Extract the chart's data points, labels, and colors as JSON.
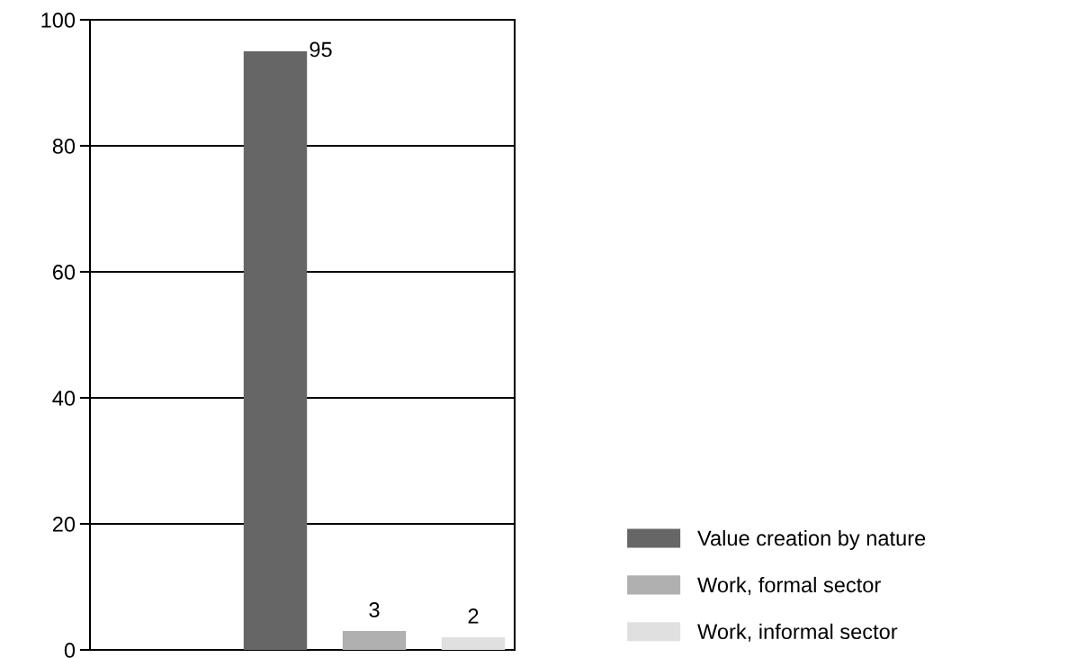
{
  "chart_data": {
    "type": "bar",
    "categories": [
      null
    ],
    "series": [
      {
        "name": "Value creation by nature",
        "color": "#666666",
        "values": [
          95
        ]
      },
      {
        "name": "Work, formal sector",
        "color": "#b0b0b0",
        "values": [
          3
        ]
      },
      {
        "name": "Work, informal sector",
        "color": "#e0e0e0",
        "values": [
          2
        ]
      }
    ],
    "ylim": [
      0,
      100
    ],
    "yticks": [
      0,
      20,
      40,
      60,
      80,
      100
    ],
    "grid": "y",
    "legend": "bottom right",
    "data_labels": true
  }
}
